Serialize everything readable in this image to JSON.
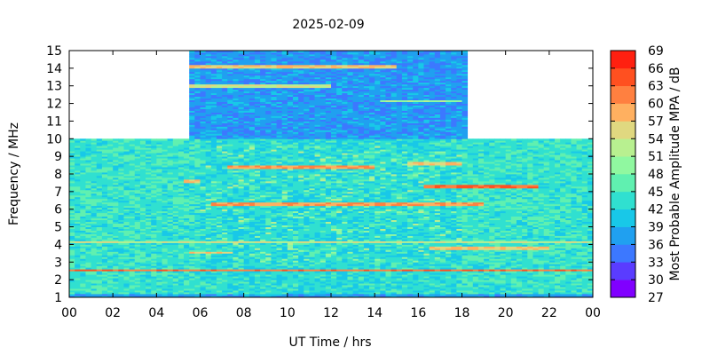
{
  "chart_data": {
    "type": "heatmap",
    "title": "2025-02-09",
    "xlabel": "UT Time / hrs",
    "ylabel": "Frequency / MHz",
    "colorbar_label": "Most Probable Amplitude MPA / dB",
    "xlim": [
      0,
      24
    ],
    "ylim": [
      1,
      15
    ],
    "x_tick_labels": [
      "00",
      "02",
      "04",
      "06",
      "08",
      "10",
      "12",
      "14",
      "16",
      "18",
      "20",
      "22",
      "00"
    ],
    "y_ticks": [
      1,
      2,
      3,
      4,
      5,
      6,
      7,
      8,
      9,
      10,
      11,
      12,
      13,
      14,
      15
    ],
    "colorbar": {
      "levels": [
        27,
        30,
        33,
        36,
        39,
        42,
        45,
        48,
        51,
        54,
        57,
        60,
        63,
        66,
        69
      ],
      "colors": [
        "#8000ff",
        "#5a3cff",
        "#3c78ff",
        "#20a0f0",
        "#18c8e8",
        "#30e0d0",
        "#60f0b0",
        "#90f8a0",
        "#b8f090",
        "#e0d880",
        "#ffb060",
        "#ff8040",
        "#ff5020",
        "#ff2010"
      ]
    },
    "data_coverage": {
      "low_band_mhz": [
        1,
        10
      ],
      "low_band_hours": [
        0,
        24
      ],
      "high_band_mhz": [
        10,
        15
      ],
      "high_band_hours": [
        5.5,
        18.2
      ]
    },
    "strong_signal_bands_mhz": [
      {
        "freq": 2.55,
        "hours": [
          0,
          24
        ],
        "level": 66
      },
      {
        "freq": 3.55,
        "hours": [
          5.6,
          7.5
        ],
        "level": 60
      },
      {
        "freq": 3.8,
        "hours": [
          16.5,
          22
        ],
        "level": 60
      },
      {
        "freq": 4.15,
        "hours": [
          0,
          24
        ],
        "level": 57
      },
      {
        "freq": 6.3,
        "hours": [
          6.5,
          19
        ],
        "level": 63
      },
      {
        "freq": 7.3,
        "hours": [
          16.2,
          21.5
        ],
        "level": 66
      },
      {
        "freq": 7.6,
        "hours": [
          5.2,
          5.9
        ],
        "level": 60
      },
      {
        "freq": 8.4,
        "hours": [
          7.2,
          14
        ],
        "level": 63
      },
      {
        "freq": 8.6,
        "hours": [
          15.6,
          18
        ],
        "level": 60
      },
      {
        "freq": 12.15,
        "hours": [
          14.2,
          18
        ],
        "level": 54
      },
      {
        "freq": 13.0,
        "hours": [
          5.5,
          12
        ],
        "level": 57
      },
      {
        "freq": 14.1,
        "hours": [
          5.5,
          15
        ],
        "level": 60
      }
    ]
  }
}
